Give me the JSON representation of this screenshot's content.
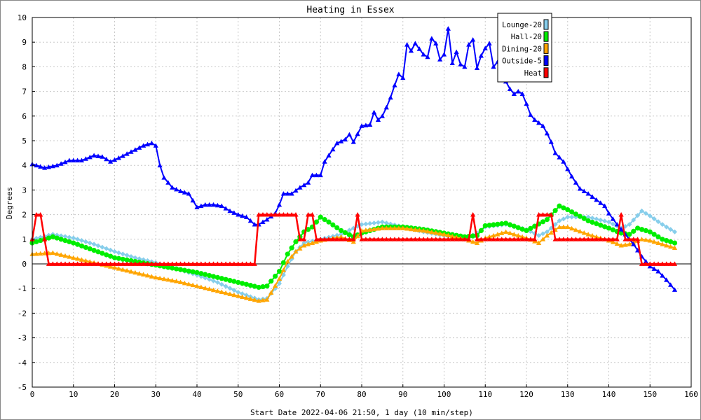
{
  "chart_data": {
    "type": "line",
    "title": "Heating in Essex",
    "xlabel": "Start Date 2022-04-06 21:50, 1 day (10 min/step)",
    "ylabel": "Degrees",
    "xlim": [
      0,
      160
    ],
    "ylim": [
      -5,
      10
    ],
    "x_ticks": [
      0,
      10,
      20,
      30,
      40,
      50,
      60,
      70,
      80,
      90,
      100,
      110,
      120,
      130,
      140,
      150,
      160
    ],
    "y_ticks": [
      -5,
      -4,
      -3,
      -2,
      -1,
      0,
      1,
      2,
      3,
      4,
      5,
      6,
      7,
      8,
      9,
      10
    ],
    "grid": true,
    "zero_line": true,
    "legend_position": "top-right",
    "series": [
      {
        "name": "Lounge-20",
        "color": "#87CEEB",
        "marker": "diamond",
        "points": [
          [
            0,
            1.0
          ],
          [
            5,
            1.2
          ],
          [
            10,
            1.05
          ],
          [
            15,
            0.8
          ],
          [
            20,
            0.5
          ],
          [
            25,
            0.25
          ],
          [
            30,
            0.05
          ],
          [
            35,
            -0.2
          ],
          [
            40,
            -0.45
          ],
          [
            45,
            -0.75
          ],
          [
            50,
            -1.15
          ],
          [
            55,
            -1.45
          ],
          [
            57,
            -1.4
          ],
          [
            60,
            -0.8
          ],
          [
            62,
            -0.1
          ],
          [
            64,
            0.5
          ],
          [
            66,
            0.85
          ],
          [
            70,
            1.0
          ],
          [
            75,
            1.2
          ],
          [
            78,
            1.45
          ],
          [
            80,
            1.6
          ],
          [
            85,
            1.7
          ],
          [
            90,
            1.5
          ],
          [
            95,
            1.3
          ],
          [
            100,
            1.15
          ],
          [
            105,
            1.0
          ],
          [
            108,
            1.25
          ],
          [
            110,
            1.5
          ],
          [
            115,
            1.6
          ],
          [
            120,
            1.4
          ],
          [
            123,
            1.15
          ],
          [
            125,
            1.3
          ],
          [
            128,
            1.75
          ],
          [
            130,
            1.9
          ],
          [
            135,
            1.9
          ],
          [
            140,
            1.7
          ],
          [
            143,
            1.45
          ],
          [
            145,
            1.6
          ],
          [
            148,
            2.15
          ],
          [
            150,
            1.95
          ],
          [
            153,
            1.6
          ],
          [
            156,
            1.3
          ]
        ]
      },
      {
        "name": "Hall-20",
        "color": "#00EE00",
        "marker": "circle",
        "points": [
          [
            0,
            0.85
          ],
          [
            5,
            1.1
          ],
          [
            10,
            0.85
          ],
          [
            15,
            0.55
          ],
          [
            20,
            0.25
          ],
          [
            25,
            0.1
          ],
          [
            30,
            -0.05
          ],
          [
            35,
            -0.2
          ],
          [
            40,
            -0.35
          ],
          [
            45,
            -0.55
          ],
          [
            50,
            -0.75
          ],
          [
            55,
            -0.95
          ],
          [
            57,
            -0.9
          ],
          [
            60,
            -0.3
          ],
          [
            62,
            0.4
          ],
          [
            64,
            0.9
          ],
          [
            66,
            1.3
          ],
          [
            68,
            1.5
          ],
          [
            70,
            1.9
          ],
          [
            72,
            1.7
          ],
          [
            75,
            1.35
          ],
          [
            78,
            1.1
          ],
          [
            80,
            1.25
          ],
          [
            85,
            1.5
          ],
          [
            90,
            1.5
          ],
          [
            95,
            1.4
          ],
          [
            100,
            1.25
          ],
          [
            105,
            1.1
          ],
          [
            108,
            1.15
          ],
          [
            110,
            1.55
          ],
          [
            115,
            1.65
          ],
          [
            120,
            1.35
          ],
          [
            125,
            1.8
          ],
          [
            128,
            2.35
          ],
          [
            130,
            2.2
          ],
          [
            135,
            1.75
          ],
          [
            140,
            1.45
          ],
          [
            143,
            1.25
          ],
          [
            145,
            1.2
          ],
          [
            147,
            1.45
          ],
          [
            150,
            1.3
          ],
          [
            153,
            1.0
          ],
          [
            156,
            0.85
          ]
        ]
      },
      {
        "name": "Dining-20",
        "color": "#FFA500",
        "marker": "triangle",
        "points": [
          [
            0,
            0.4
          ],
          [
            5,
            0.45
          ],
          [
            10,
            0.25
          ],
          [
            15,
            0.05
          ],
          [
            20,
            -0.15
          ],
          [
            25,
            -0.35
          ],
          [
            30,
            -0.55
          ],
          [
            35,
            -0.7
          ],
          [
            40,
            -0.9
          ],
          [
            45,
            -1.1
          ],
          [
            50,
            -1.3
          ],
          [
            55,
            -1.5
          ],
          [
            57,
            -1.45
          ],
          [
            60,
            -0.6
          ],
          [
            62,
            0.1
          ],
          [
            64,
            0.5
          ],
          [
            66,
            0.75
          ],
          [
            70,
            0.95
          ],
          [
            75,
            1.1
          ],
          [
            78,
            0.9
          ],
          [
            80,
            1.35
          ],
          [
            85,
            1.45
          ],
          [
            90,
            1.45
          ],
          [
            95,
            1.35
          ],
          [
            100,
            1.2
          ],
          [
            105,
            1.0
          ],
          [
            108,
            0.85
          ],
          [
            110,
            1.05
          ],
          [
            115,
            1.3
          ],
          [
            120,
            1.05
          ],
          [
            123,
            0.85
          ],
          [
            125,
            1.15
          ],
          [
            128,
            1.5
          ],
          [
            130,
            1.5
          ],
          [
            135,
            1.2
          ],
          [
            140,
            0.95
          ],
          [
            143,
            0.75
          ],
          [
            145,
            0.8
          ],
          [
            148,
            1.0
          ],
          [
            150,
            0.95
          ],
          [
            153,
            0.8
          ],
          [
            156,
            0.65
          ]
        ]
      },
      {
        "name": "Outside-5",
        "color": "#0000FF",
        "marker": "triangle",
        "points": [
          [
            0,
            4.05
          ],
          [
            3,
            3.9
          ],
          [
            6,
            4.0
          ],
          [
            9,
            4.2
          ],
          [
            12,
            4.2
          ],
          [
            15,
            4.4
          ],
          [
            17,
            4.35
          ],
          [
            19,
            4.15
          ],
          [
            21,
            4.3
          ],
          [
            24,
            4.55
          ],
          [
            27,
            4.8
          ],
          [
            29,
            4.9
          ],
          [
            30,
            4.8
          ],
          [
            31,
            4.0
          ],
          [
            32,
            3.5
          ],
          [
            34,
            3.1
          ],
          [
            36,
            2.95
          ],
          [
            38,
            2.85
          ],
          [
            40,
            2.3
          ],
          [
            42,
            2.4
          ],
          [
            44,
            2.4
          ],
          [
            46,
            2.35
          ],
          [
            48,
            2.15
          ],
          [
            50,
            2.0
          ],
          [
            52,
            1.9
          ],
          [
            54,
            1.6
          ],
          [
            55,
            1.6
          ],
          [
            57,
            1.8
          ],
          [
            59,
            2.05
          ],
          [
            60,
            2.4
          ],
          [
            61,
            2.85
          ],
          [
            63,
            2.85
          ],
          [
            65,
            3.1
          ],
          [
            67,
            3.3
          ],
          [
            68,
            3.6
          ],
          [
            70,
            3.6
          ],
          [
            71,
            4.15
          ],
          [
            72,
            4.4
          ],
          [
            74,
            4.9
          ],
          [
            76,
            5.05
          ],
          [
            77,
            5.25
          ],
          [
            78,
            4.95
          ],
          [
            80,
            5.6
          ],
          [
            82,
            5.65
          ],
          [
            83,
            6.15
          ],
          [
            84,
            5.85
          ],
          [
            85,
            6.0
          ],
          [
            86,
            6.35
          ],
          [
            87,
            6.75
          ],
          [
            88,
            7.25
          ],
          [
            89,
            7.7
          ],
          [
            90,
            7.55
          ],
          [
            91,
            8.9
          ],
          [
            92,
            8.65
          ],
          [
            93,
            8.95
          ],
          [
            95,
            8.5
          ],
          [
            96,
            8.4
          ],
          [
            97,
            9.15
          ],
          [
            98,
            8.95
          ],
          [
            99,
            8.3
          ],
          [
            100,
            8.5
          ],
          [
            101,
            9.55
          ],
          [
            102,
            8.15
          ],
          [
            103,
            8.6
          ],
          [
            104,
            8.1
          ],
          [
            105,
            8.0
          ],
          [
            106,
            8.9
          ],
          [
            107,
            9.1
          ],
          [
            108,
            7.95
          ],
          [
            109,
            8.45
          ],
          [
            110,
            8.75
          ],
          [
            111,
            8.95
          ],
          [
            112,
            8.0
          ],
          [
            113,
            8.2
          ],
          [
            114,
            7.7
          ],
          [
            116,
            7.1
          ],
          [
            117,
            6.9
          ],
          [
            118,
            7.0
          ],
          [
            119,
            6.9
          ],
          [
            120,
            6.5
          ],
          [
            121,
            6.05
          ],
          [
            122,
            5.85
          ],
          [
            124,
            5.6
          ],
          [
            125,
            5.3
          ],
          [
            126,
            4.95
          ],
          [
            127,
            4.5
          ],
          [
            129,
            4.15
          ],
          [
            131,
            3.55
          ],
          [
            133,
            3.05
          ],
          [
            135,
            2.85
          ],
          [
            137,
            2.6
          ],
          [
            139,
            2.35
          ],
          [
            140,
            2.05
          ],
          [
            142,
            1.6
          ],
          [
            144,
            1.2
          ],
          [
            146,
            0.8
          ],
          [
            148,
            0.3
          ],
          [
            150,
            -0.1
          ],
          [
            152,
            -0.3
          ],
          [
            154,
            -0.65
          ],
          [
            156,
            -1.05
          ]
        ]
      },
      {
        "name": "Heat",
        "color": "#FF0000",
        "marker": "triangle",
        "points": [
          [
            0,
            1.0
          ],
          [
            1,
            2.0
          ],
          [
            2,
            2.0
          ],
          [
            3,
            1.0
          ],
          [
            4,
            0
          ],
          [
            54,
            0
          ],
          [
            55,
            2.0
          ],
          [
            64,
            2.0
          ],
          [
            65,
            1.0
          ],
          [
            66,
            1.0
          ],
          [
            67,
            2.0
          ],
          [
            68,
            2.0
          ],
          [
            69,
            1.0
          ],
          [
            78,
            1.0
          ],
          [
            79,
            2.0
          ],
          [
            80,
            1.0
          ],
          [
            106,
            1.0
          ],
          [
            107,
            2.0
          ],
          [
            108,
            1.0
          ],
          [
            122,
            1.0
          ],
          [
            123,
            2.0
          ],
          [
            126,
            2.0
          ],
          [
            127,
            1.0
          ],
          [
            142,
            1.0
          ],
          [
            143,
            2.0
          ],
          [
            144,
            1.0
          ],
          [
            147,
            1.0
          ],
          [
            148,
            0
          ],
          [
            156,
            0
          ]
        ]
      }
    ]
  }
}
